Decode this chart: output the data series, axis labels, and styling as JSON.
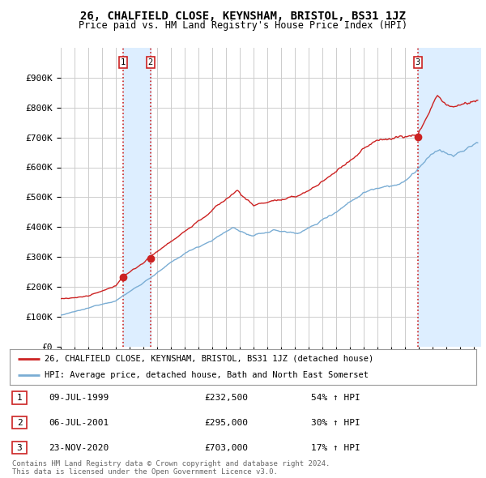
{
  "title": "26, CHALFIELD CLOSE, KEYNSHAM, BRISTOL, BS31 1JZ",
  "subtitle": "Price paid vs. HM Land Registry's House Price Index (HPI)",
  "ylabel_ticks": [
    "£0",
    "£100K",
    "£200K",
    "£300K",
    "£400K",
    "£500K",
    "£600K",
    "£700K",
    "£800K",
    "£900K"
  ],
  "ytick_vals": [
    0,
    100000,
    200000,
    300000,
    400000,
    500000,
    600000,
    700000,
    800000,
    900000
  ],
  "ylim": [
    0,
    1000000
  ],
  "xlim_start": 1995.0,
  "xlim_end": 2025.5,
  "hpi_color": "#7aadd4",
  "price_color": "#cc2222",
  "shade_color": "#ddeeff",
  "vline_color_solid": "#cc2222",
  "vline_color_dashed": "#cc2222",
  "background_color": "#ffffff",
  "grid_color": "#cccccc",
  "transactions": [
    {
      "label": "1",
      "date_str": "09-JUL-1999",
      "year": 1999.52,
      "price": 232500,
      "info": "£232,500",
      "pct": "54% ↑ HPI"
    },
    {
      "label": "2",
      "date_str": "06-JUL-2001",
      "year": 2001.51,
      "price": 295000,
      "info": "£295,000",
      "pct": "30% ↑ HPI"
    },
    {
      "label": "3",
      "date_str": "23-NOV-2020",
      "year": 2020.9,
      "price": 703000,
      "info": "£703,000",
      "pct": "17% ↑ HPI"
    }
  ],
  "legend_label_price": "26, CHALFIELD CLOSE, KEYNSHAM, BRISTOL, BS31 1JZ (detached house)",
  "legend_label_hpi": "HPI: Average price, detached house, Bath and North East Somerset",
  "footer1": "Contains HM Land Registry data © Crown copyright and database right 2024.",
  "footer2": "This data is licensed under the Open Government Licence v3.0.",
  "table_rows": [
    [
      "1",
      "09-JUL-1999",
      "£232,500",
      "54% ↑ HPI"
    ],
    [
      "2",
      "06-JUL-2001",
      "£295,000",
      "30% ↑ HPI"
    ],
    [
      "3",
      "23-NOV-2020",
      "£703,000",
      "17% ↑ HPI"
    ]
  ]
}
